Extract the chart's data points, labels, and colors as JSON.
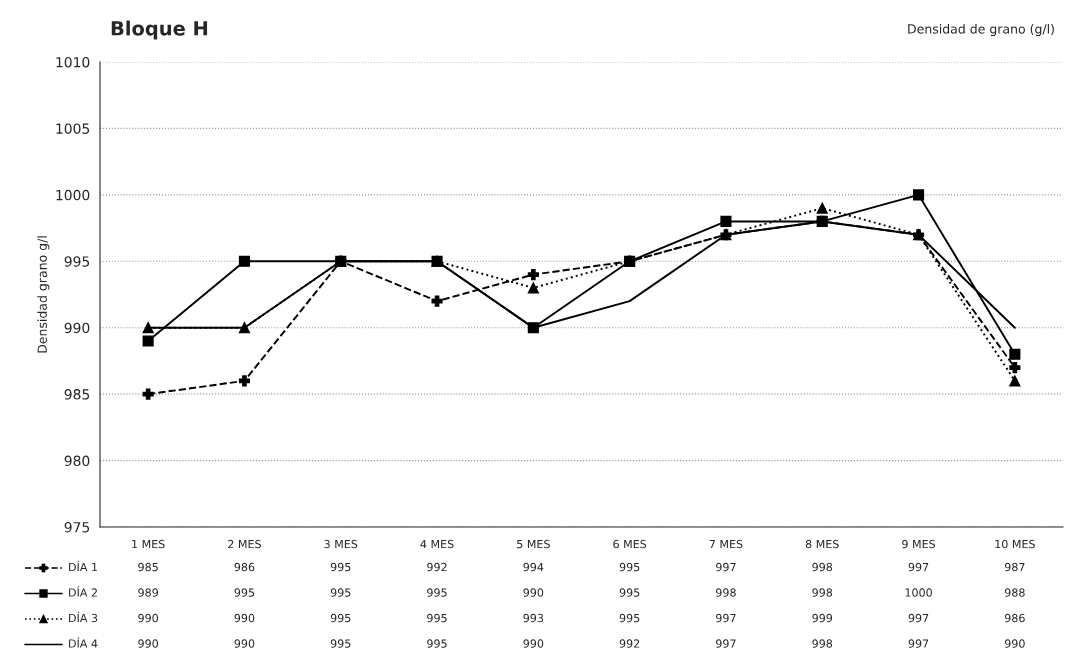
{
  "chart_data": {
    "type": "line",
    "title": "Bloque H",
    "subtitle": "Densidad de grano (g/l)",
    "ylabel": "Densidad grano g/l",
    "categories": [
      "1 MES",
      "2 MES",
      "3 MES",
      "4 MES",
      "5 MES",
      "6 MES",
      "7 MES",
      "8 MES",
      "9 MES",
      "10 MES"
    ],
    "series": [
      {
        "name": "DÍA 1",
        "color": "#000000",
        "marker": "cross",
        "line_style": "dashed",
        "values": [
          985,
          986,
          995,
          992,
          994,
          995,
          997,
          998,
          997,
          987
        ]
      },
      {
        "name": "DÍA 2",
        "color": "#000000",
        "marker": "square",
        "line_style": "solid",
        "values": [
          989,
          995,
          995,
          995,
          990,
          995,
          998,
          998,
          1000,
          988
        ]
      },
      {
        "name": "DÍA 3",
        "color": "#000000",
        "marker": "triangle",
        "line_style": "dotted",
        "values": [
          990,
          990,
          995,
          995,
          993,
          995,
          997,
          999,
          997,
          986
        ]
      },
      {
        "name": "DÍA 4",
        "color": "#000000",
        "marker": "none",
        "line_style": "solid",
        "values": [
          990,
          990,
          995,
          995,
          990,
          992,
          997,
          998,
          997,
          990
        ]
      }
    ],
    "ylim": [
      975,
      1010
    ],
    "yticks": [
      975,
      980,
      985,
      990,
      995,
      1000,
      1005,
      1010
    ],
    "grid": "y",
    "data_labels": true,
    "legend": "bottom left"
  }
}
